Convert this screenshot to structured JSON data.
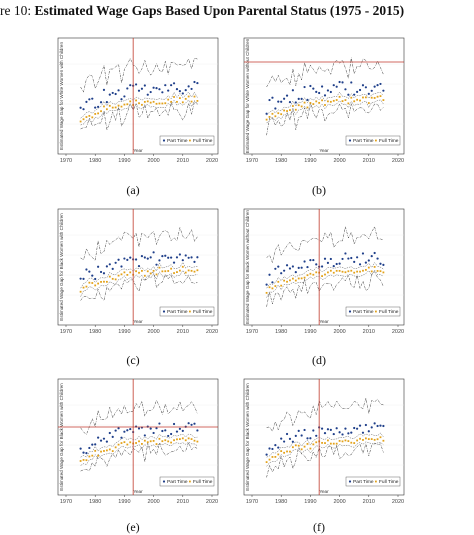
{
  "figure": {
    "number_label": "re 10:",
    "title": "Estimated Wage Gaps Based Upon Parental Status (1975 - 2015)"
  },
  "panels": [
    {
      "label": "(a)",
      "ylabel": "Estimated Wage Gap for White Women with Children",
      "xlabel": "Year",
      "xticks": [
        "1970",
        "1980",
        "1990",
        "2000",
        "2010",
        "2020"
      ],
      "xlim": [
        1970,
        2020
      ],
      "ylim": [
        0,
        1
      ],
      "vline_year": 1993,
      "hline_y": null,
      "legend": [
        "Part Time",
        "Full Time"
      ],
      "series_colors": {
        "part": "#1f3f8a",
        "full": "#e3a21a",
        "ci": "#333333",
        "ref": "#c0392b"
      }
    },
    {
      "label": "(b)",
      "ylabel": "Estimated Wage Gap for White Women without Children",
      "xlabel": "Year",
      "xticks": [
        "1970",
        "1980",
        "1990",
        "2000",
        "2010",
        "2020"
      ],
      "xlim": [
        1970,
        2020
      ],
      "ylim": [
        0,
        1
      ],
      "vline_year": null,
      "hline_y": 0.82,
      "legend": [
        "Part Time",
        "Full Time"
      ],
      "series_colors": {
        "part": "#1f3f8a",
        "full": "#e3a21a",
        "ci": "#333333",
        "ref": "#c0392b"
      }
    },
    {
      "label": "(c)",
      "ylabel": "Estimated Wage Gap for Black Women with Children",
      "xlabel": "Year",
      "xticks": [
        "1970",
        "1980",
        "1990",
        "2000",
        "2010",
        "2020"
      ],
      "xlim": [
        1970,
        2020
      ],
      "ylim": [
        0,
        1
      ],
      "vline_year": 1993,
      "hline_y": null,
      "legend": [
        "Part Time",
        "Full Time"
      ],
      "series_colors": {
        "part": "#1f3f8a",
        "full": "#e3a21a",
        "ci": "#333333",
        "ref": "#c0392b"
      }
    },
    {
      "label": "(d)",
      "ylabel": "Estimated Wage Gap for Black Women without Children",
      "xlabel": "Year",
      "xticks": [
        "1970",
        "1980",
        "1990",
        "2000",
        "2010",
        "2020"
      ],
      "xlim": [
        1970,
        2020
      ],
      "ylim": [
        0,
        1
      ],
      "vline_year": 1993,
      "hline_y": null,
      "legend": [
        "Part Time",
        "Full Time"
      ],
      "series_colors": {
        "part": "#1f3f8a",
        "full": "#e3a21a",
        "ci": "#333333",
        "ref": "#c0392b"
      }
    },
    {
      "label": "(e)",
      "ylabel": "Estimated Wage Gap for Black Women with Children",
      "xlabel": "Year",
      "xticks": [
        "1970",
        "1980",
        "1990",
        "2000",
        "2010",
        "2020"
      ],
      "xlim": [
        1970,
        2020
      ],
      "ylim": [
        0,
        1
      ],
      "vline_year": 1993,
      "hline_y": 0.58,
      "legend": [
        "Part Time",
        "Full Time"
      ],
      "series_colors": {
        "part": "#1f3f8a",
        "full": "#e3a21a",
        "ci": "#333333",
        "ref": "#c0392b"
      }
    },
    {
      "label": "(f)",
      "ylabel": "Estimated Wage Gap for Black Women with Children",
      "xlabel": "Year",
      "xticks": [
        "1970",
        "1980",
        "1990",
        "2000",
        "2010",
        "2020"
      ],
      "xlim": [
        1970,
        2020
      ],
      "ylim": [
        0,
        1
      ],
      "vline_year": 1993,
      "hline_y": null,
      "legend": [
        "Part Time",
        "Full Time"
      ],
      "series_colors": {
        "part": "#1f3f8a",
        "full": "#e3a21a",
        "ci": "#333333",
        "ref": "#c0392b"
      }
    }
  ]
}
